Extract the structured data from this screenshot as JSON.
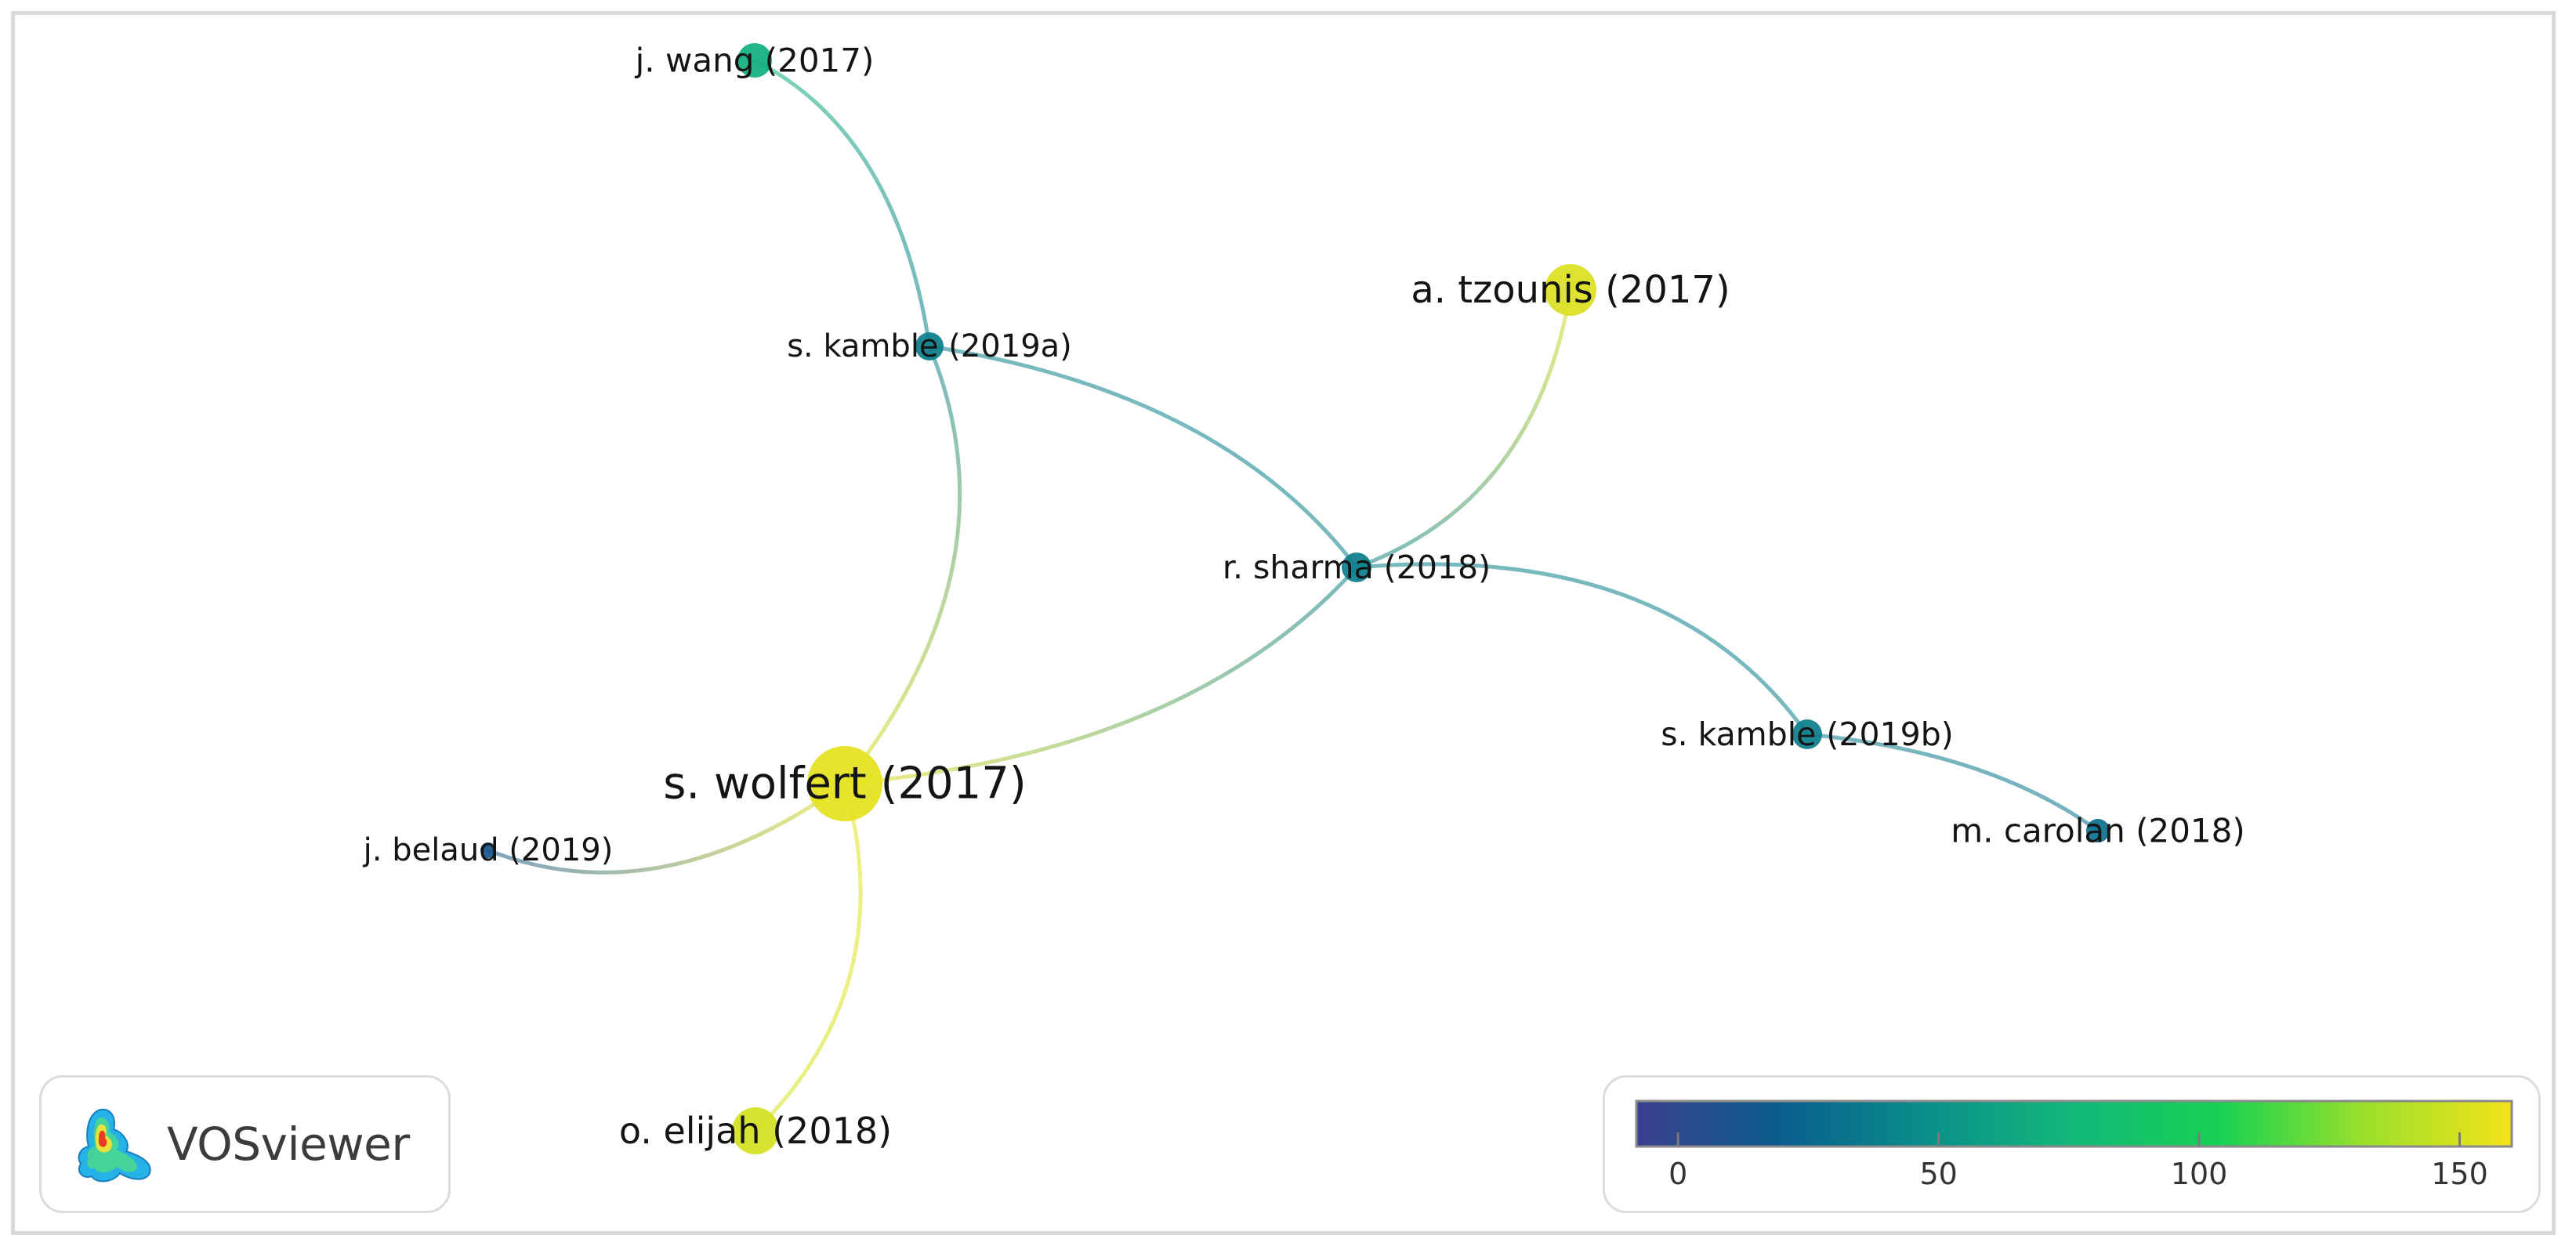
{
  "network": {
    "nodes": [
      {
        "id": "wang2017",
        "label": "j. wang (2017)",
        "score": 70
      },
      {
        "id": "kamble2019a",
        "label": "s. kamble (2019a)",
        "score": 38
      },
      {
        "id": "tzounis2017",
        "label": "a. tzounis (2017)",
        "score": 152
      },
      {
        "id": "sharma2018",
        "label": "r. sharma (2018)",
        "score": 38
      },
      {
        "id": "kamble2019b",
        "label": "s. kamble (2019b)",
        "score": 38
      },
      {
        "id": "carolan2018",
        "label": "m. carolan (2018)",
        "score": 30
      },
      {
        "id": "wolfert2017",
        "label": "s. wolfert (2017)",
        "score": 155
      },
      {
        "id": "belaud2019",
        "label": "j. belaud (2019)",
        "score": 12
      },
      {
        "id": "elijah2018",
        "label": "o. elijah (2018)",
        "score": 150
      }
    ],
    "links": [
      {
        "source": "wang2017",
        "target": "kamble2019a"
      },
      {
        "source": "kamble2019a",
        "target": "wolfert2017"
      },
      {
        "source": "kamble2019a",
        "target": "sharma2018"
      },
      {
        "source": "tzounis2017",
        "target": "sharma2018"
      },
      {
        "source": "sharma2018",
        "target": "wolfert2017"
      },
      {
        "source": "sharma2018",
        "target": "kamble2019b"
      },
      {
        "source": "kamble2019b",
        "target": "carolan2018"
      },
      {
        "source": "wolfert2017",
        "target": "belaud2019"
      },
      {
        "source": "wolfert2017",
        "target": "elijah2018"
      }
    ]
  },
  "legend": {
    "ticks": [
      "0",
      "50",
      "100",
      "150"
    ],
    "range": [
      -8,
      160
    ],
    "colors": [
      "#3b3f8f",
      "#0a5e8e",
      "#0a8f8a",
      "#12b879",
      "#17d153",
      "#9be02a",
      "#f4e21a"
    ]
  },
  "logo": {
    "text": "VOSviewer"
  }
}
